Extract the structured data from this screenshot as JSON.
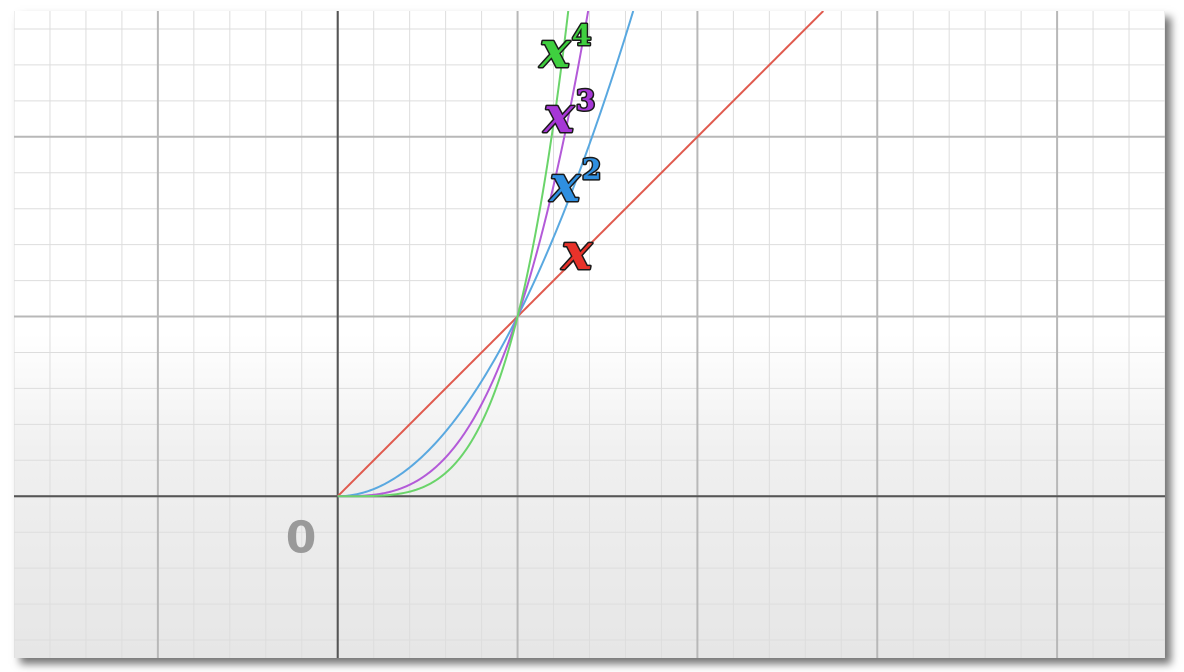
{
  "chart_data": {
    "type": "line",
    "title": "",
    "xlabel": "",
    "ylabel": "",
    "xlim": [
      -1.8,
      4.6
    ],
    "ylim": [
      -0.9,
      2.7
    ],
    "grid": true,
    "origin_label": "0",
    "series": [
      {
        "name": "x",
        "label_base": "x",
        "label_exp": "",
        "color": "#e05a4e",
        "label_color": "#e8322a",
        "power": 1,
        "x": [
          0,
          0.5,
          1,
          1.5,
          2,
          2.5,
          2.7
        ],
        "values": [
          0,
          0.5,
          1,
          1.5,
          2,
          2.5,
          2.7
        ]
      },
      {
        "name": "x²",
        "label_base": "x",
        "label_exp": "2",
        "color": "#59a8e0",
        "label_color": "#2f8fe0",
        "power": 2,
        "x": [
          0,
          0.25,
          0.5,
          0.75,
          1,
          1.25,
          1.5,
          1.64
        ],
        "values": [
          0,
          0.0625,
          0.25,
          0.5625,
          1,
          1.5625,
          2.25,
          2.69
        ]
      },
      {
        "name": "x³",
        "label_base": "x",
        "label_exp": "3",
        "color": "#b35ad8",
        "label_color": "#a637d6",
        "power": 3,
        "x": [
          0,
          0.25,
          0.5,
          0.75,
          1,
          1.2,
          1.39
        ],
        "values": [
          0,
          0.0156,
          0.125,
          0.4219,
          1,
          1.728,
          2.686
        ]
      },
      {
        "name": "x⁴",
        "label_base": "x",
        "label_exp": "4",
        "color": "#6ad46a",
        "label_color": "#3fcf3f",
        "power": 4,
        "x": [
          0,
          0.25,
          0.5,
          0.75,
          1,
          1.15,
          1.28
        ],
        "values": [
          0,
          0.0039,
          0.0625,
          0.3164,
          1,
          1.749,
          2.684
        ]
      }
    ]
  }
}
